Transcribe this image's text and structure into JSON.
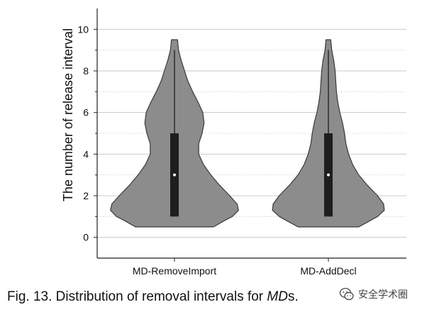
{
  "chart_data": {
    "type": "violin",
    "ylabel": "The number of release interval",
    "xlabel": "",
    "ylim": [
      -1,
      11
    ],
    "yticks": [
      0,
      2,
      4,
      6,
      8,
      10
    ],
    "grid": true,
    "categories": [
      "MD-RemoveImport",
      "MD-AddDecl"
    ],
    "series": [
      {
        "category": "MD-RemoveImport",
        "min": 1,
        "q1": 1,
        "median": 3,
        "q3": 5,
        "max": 9,
        "violin_min": 0.5,
        "violin_max": 9.5,
        "density_profile": [
          [
            0.5,
            0.58
          ],
          [
            0.8,
            0.74
          ],
          [
            1.0,
            0.86
          ],
          [
            1.3,
            0.95
          ],
          [
            1.6,
            0.93
          ],
          [
            2.0,
            0.82
          ],
          [
            2.5,
            0.67
          ],
          [
            3.0,
            0.54
          ],
          [
            3.5,
            0.43
          ],
          [
            4.0,
            0.36
          ],
          [
            4.5,
            0.36
          ],
          [
            5.0,
            0.41
          ],
          [
            5.5,
            0.44
          ],
          [
            6.0,
            0.42
          ],
          [
            6.5,
            0.35
          ],
          [
            7.0,
            0.27
          ],
          [
            7.5,
            0.2
          ],
          [
            8.0,
            0.15
          ],
          [
            8.5,
            0.1
          ],
          [
            9.0,
            0.06
          ],
          [
            9.5,
            0.045
          ]
        ]
      },
      {
        "category": "MD-AddDecl",
        "min": 1,
        "q1": 1,
        "median": 3,
        "q3": 5,
        "max": 9,
        "violin_min": 0.5,
        "violin_max": 9.5,
        "density_profile": [
          [
            0.5,
            0.45
          ],
          [
            0.8,
            0.62
          ],
          [
            1.0,
            0.73
          ],
          [
            1.3,
            0.83
          ],
          [
            1.6,
            0.82
          ],
          [
            2.0,
            0.73
          ],
          [
            2.5,
            0.58
          ],
          [
            3.0,
            0.45
          ],
          [
            3.5,
            0.36
          ],
          [
            4.0,
            0.3
          ],
          [
            4.5,
            0.26
          ],
          [
            5.0,
            0.24
          ],
          [
            5.5,
            0.21
          ],
          [
            6.0,
            0.17
          ],
          [
            6.5,
            0.14
          ],
          [
            7.0,
            0.12
          ],
          [
            7.5,
            0.11
          ],
          [
            8.0,
            0.1
          ],
          [
            8.5,
            0.08
          ],
          [
            9.0,
            0.05
          ],
          [
            9.5,
            0.035
          ]
        ]
      }
    ]
  },
  "caption": {
    "prefix": "Fig. 13. Distribution of removal intervals for ",
    "emphasis": "MD",
    "suffix": "s."
  },
  "watermark": {
    "text": "安全学术圈",
    "icon": "wechat-icon"
  },
  "colors": {
    "violin_fill": "#8c8c8c",
    "violin_stroke": "#3a3a3a",
    "box_fill": "#1e1e1e",
    "median_marker": "#ffffff",
    "grid": "#c9c9c9",
    "axis": "#222222"
  }
}
